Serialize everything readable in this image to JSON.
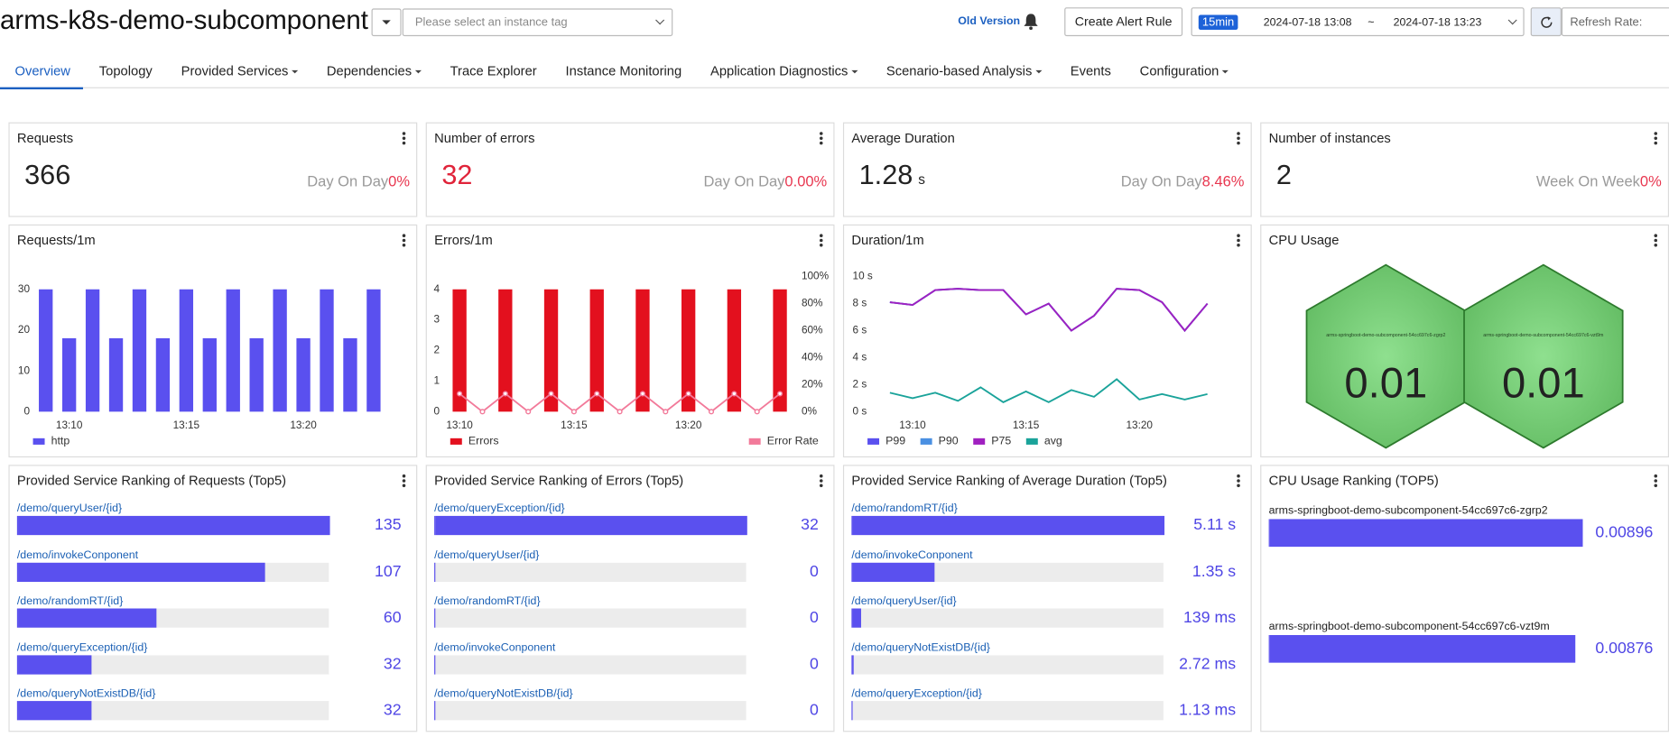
{
  "header": {
    "title": "arms-k8s-demo-subcomponent",
    "instance_placeholder": "Please select an instance tag",
    "old_version": "Old Version",
    "create_alert": "Create Alert Rule",
    "time_range": {
      "preset": "15min",
      "start": "2024-07-18 13:08",
      "separator": "~",
      "end": "2024-07-18 13:23"
    },
    "refresh_label": "Refresh Rate:"
  },
  "tabs": [
    {
      "label": "Overview",
      "menu": false,
      "active": true
    },
    {
      "label": "Topology",
      "menu": false
    },
    {
      "label": "Provided Services",
      "menu": true
    },
    {
      "label": "Dependencies",
      "menu": true
    },
    {
      "label": "Trace Explorer",
      "menu": false
    },
    {
      "label": "Instance Monitoring",
      "menu": false
    },
    {
      "label": "Application Diagnostics",
      "menu": true
    },
    {
      "label": "Scenario-based Analysis",
      "menu": true
    },
    {
      "label": "Events",
      "menu": false
    },
    {
      "label": "Configuration",
      "menu": true
    }
  ],
  "stats": [
    {
      "title": "Requests",
      "value": 366,
      "compare": "Day On Day",
      "change": "0%",
      "change_color": "#e8364f",
      "value_color": "#222"
    },
    {
      "title": "Number of errors",
      "value": 32,
      "compare": "Day On Day",
      "change": "0.00%",
      "change_color": "#e8364f",
      "value_color": "#e0243a"
    },
    {
      "title": "Average Duration",
      "value": 1.28,
      "unit": "s",
      "compare": "Day On Day",
      "change": "8.46%",
      "change_color": "#e8364f",
      "value_color": "#222"
    },
    {
      "title": "Number of instances",
      "value": 2,
      "compare": "Week On Week",
      "change": "0%",
      "change_color": "#e8364f",
      "value_color": "#222"
    }
  ],
  "chart_data": [
    {
      "type": "bar",
      "title": "Requests/1m",
      "grid": false,
      "legend": "bottom",
      "categories": [
        null,
        "13:10",
        null,
        null,
        null,
        null,
        "13:15",
        null,
        null,
        null,
        null,
        "13:20",
        null,
        null,
        null
      ],
      "ylim": [
        0,
        30
      ],
      "yticks": [
        0,
        10,
        20,
        30
      ],
      "series": [
        {
          "name": "http",
          "color": "#5a50ef",
          "values": [
            30,
            18,
            30,
            18,
            30,
            18,
            30,
            18,
            30,
            18,
            30,
            18,
            30,
            18,
            30
          ]
        }
      ]
    },
    {
      "type": "bar",
      "title": "Errors/1m",
      "grid": false,
      "legend": "bottom",
      "categories": [
        "13:10",
        null,
        null,
        null,
        null,
        "13:15",
        null,
        null,
        null,
        null,
        "13:20",
        null,
        null,
        null,
        null
      ],
      "ylim": [
        0,
        4
      ],
      "yticks": [
        0,
        1,
        2,
        3,
        4
      ],
      "y2lim": [
        0,
        100
      ],
      "y2ticks": [
        {
          "value": 0,
          "label": "0%"
        },
        {
          "value": 20,
          "label": "20%"
        },
        {
          "value": 40,
          "label": "40%"
        },
        {
          "value": 60,
          "label": "60%"
        },
        {
          "value": 80,
          "label": "80%"
        },
        {
          "value": 100,
          "label": "100%"
        }
      ],
      "series": [
        {
          "name": "Errors",
          "color": "#e3101e",
          "values": [
            4,
            0,
            4,
            0,
            4,
            0,
            4,
            0,
            4,
            0,
            4,
            0,
            4,
            0,
            4
          ]
        },
        {
          "name": "Error Rate",
          "type": "line",
          "axis": "y2",
          "markers": true,
          "color": "#f27a9a",
          "values": [
            13.3,
            0,
            13.3,
            0,
            13.3,
            0,
            13.3,
            0,
            13.3,
            0,
            13.3,
            0,
            13.3,
            0,
            13.3
          ]
        }
      ]
    },
    {
      "type": "line",
      "title": "Duration/1m",
      "grid": false,
      "legend": "bottom",
      "categories": [
        null,
        "13:10",
        null,
        null,
        null,
        null,
        "13:15",
        null,
        null,
        null,
        null,
        "13:20",
        null,
        null,
        null
      ],
      "ylim": [
        0,
        10
      ],
      "yticks": [
        {
          "value": 0,
          "label": "0 s"
        },
        {
          "value": 2,
          "label": "2 s"
        },
        {
          "value": 4,
          "label": "4 s"
        },
        {
          "value": 6,
          "label": "6 s"
        },
        {
          "value": 8,
          "label": "8 s"
        },
        {
          "value": 10,
          "label": "10 s"
        }
      ],
      "series": [
        {
          "name": "P99",
          "color": "#5a50ef",
          "values": [
            8.1,
            7.9,
            9.0,
            9.1,
            9.0,
            9.0,
            7.2,
            8.0,
            6.0,
            7.1,
            9.1,
            9.0,
            8.1,
            6.0,
            8.0
          ]
        },
        {
          "name": "P90",
          "color": "#4a90e2",
          "values": [
            8.1,
            7.9,
            9.0,
            9.1,
            9.0,
            9.0,
            7.2,
            8.0,
            6.0,
            7.1,
            9.1,
            9.0,
            8.1,
            6.0,
            8.0
          ]
        },
        {
          "name": "P75",
          "color": "#a020c0",
          "values": [
            8.1,
            7.9,
            9.0,
            9.1,
            9.0,
            9.0,
            7.2,
            8.0,
            6.0,
            7.1,
            9.1,
            9.0,
            8.1,
            6.0,
            8.0
          ]
        },
        {
          "name": "avg",
          "color": "#1aa39a",
          "values": [
            1.4,
            1.0,
            1.4,
            0.8,
            1.8,
            0.7,
            1.5,
            0.7,
            1.6,
            1.1,
            2.4,
            0.9,
            1.3,
            0.9,
            1.3
          ]
        }
      ]
    }
  ],
  "cpu_usage": {
    "title": "CPU Usage",
    "instances": [
      {
        "name": "arms-springboot-demo-subcomponent-54cc697c6-zgrp2",
        "value": 0.01
      },
      {
        "name": "arms-springboot-demo-subcomponent-54cc697c6-vzt9m",
        "value": 0.01
      }
    ]
  },
  "rankings": [
    {
      "title": "Provided Service Ranking of Requests (Top5)",
      "items": [
        {
          "label": "/demo/queryUser/{id}",
          "value": 135
        },
        {
          "label": "/demo/invokeConponent",
          "value": 107
        },
        {
          "label": "/demo/randomRT/{id}",
          "value": 60
        },
        {
          "label": "/demo/queryException/{id}",
          "value": 32
        },
        {
          "label": "/demo/queryNotExistDB/{id}",
          "value": 32
        }
      ]
    },
    {
      "title": "Provided Service Ranking of Errors (Top5)",
      "items": [
        {
          "label": "/demo/queryException/{id}",
          "value": 32
        },
        {
          "label": "/demo/queryUser/{id}",
          "value": 0
        },
        {
          "label": "/demo/randomRT/{id}",
          "value": 0
        },
        {
          "label": "/demo/invokeConponent",
          "value": 0
        },
        {
          "label": "/demo/queryNotExistDB/{id}",
          "value": 0
        }
      ]
    },
    {
      "title": "Provided Service Ranking of Average Duration (Top5)",
      "items": [
        {
          "label": "/demo/randomRT/{id}",
          "value": 5110,
          "value_label": "5.11 s"
        },
        {
          "label": "/demo/invokeConponent",
          "value": 1350,
          "value_label": "1.35 s"
        },
        {
          "label": "/demo/queryUser/{id}",
          "value": 139,
          "value_label": "139 ms"
        },
        {
          "label": "/demo/queryNotExistDB/{id}",
          "value": 2.72,
          "value_label": "2.72 ms"
        },
        {
          "label": "/demo/queryException/{id}",
          "value": 1.13,
          "value_label": "1.13 ms"
        }
      ]
    },
    {
      "title": "CPU Usage Ranking (TOP5)",
      "items": [
        {
          "label": "arms-springboot-demo-subcomponent-54cc697c6-zgrp2",
          "value": 0.00896
        },
        {
          "label": "arms-springboot-demo-subcomponent-54cc697c6-vzt9m",
          "value": 0.00876
        }
      ]
    }
  ]
}
